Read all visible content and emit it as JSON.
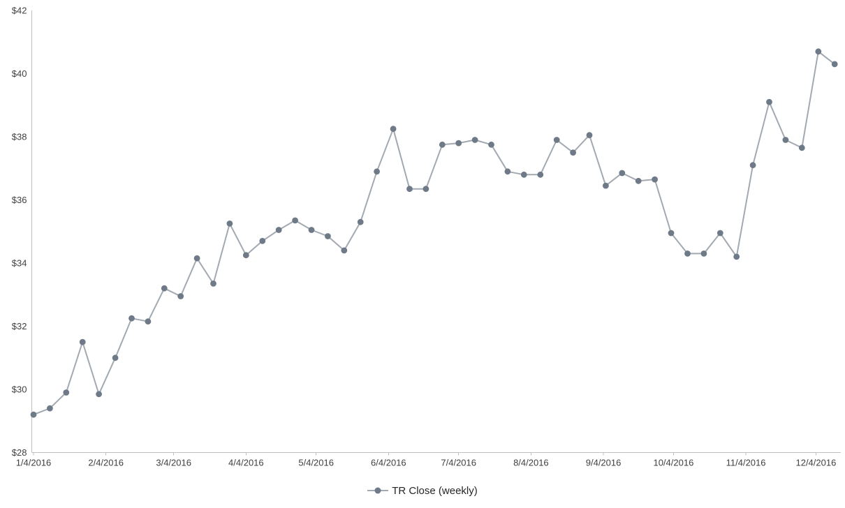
{
  "chart_data": {
    "type": "line",
    "title": "",
    "legend": "TR Close (weekly)",
    "legend_position": "bottom-center",
    "grid": false,
    "background": "#ffffff",
    "axis_line_color": "#bfbfbf",
    "axis_text_color": "#3f3f3f",
    "y_axis": {
      "min": 28,
      "max": 42,
      "tick_values": [
        28,
        30,
        32,
        34,
        36,
        38,
        40,
        42
      ],
      "tick_labels": [
        "$28",
        "$30",
        "$32",
        "$34",
        "$36",
        "$38",
        "$40",
        "$42"
      ]
    },
    "x_axis": {
      "tick_labels": [
        "1/4/2016",
        "2/4/2016",
        "3/4/2016",
        "4/4/2016",
        "5/4/2016",
        "6/4/2016",
        "7/4/2016",
        "8/4/2016",
        "9/4/2016",
        "10/4/2016",
        "11/4/2016",
        "12/4/2016"
      ],
      "tick_day_offsets": [
        0,
        31,
        60,
        91,
        121,
        152,
        182,
        213,
        244,
        274,
        305,
        335
      ]
    },
    "series": [
      {
        "name": "TR Close (weekly)",
        "line_color": "#a2a9b0",
        "marker_color": "#6e7a87",
        "x": [
          "1/4/2016",
          "1/11/2016",
          "1/18/2016",
          "1/25/2016",
          "2/1/2016",
          "2/8/2016",
          "2/15/2016",
          "2/22/2016",
          "2/29/2016",
          "3/7/2016",
          "3/14/2016",
          "3/21/2016",
          "3/28/2016",
          "4/4/2016",
          "4/11/2016",
          "4/18/2016",
          "4/25/2016",
          "5/2/2016",
          "5/9/2016",
          "5/16/2016",
          "5/23/2016",
          "5/30/2016",
          "6/6/2016",
          "6/13/2016",
          "6/20/2016",
          "6/27/2016",
          "7/4/2016",
          "7/11/2016",
          "7/18/2016",
          "7/25/2016",
          "8/1/2016",
          "8/8/2016",
          "8/15/2016",
          "8/22/2016",
          "8/29/2016",
          "9/5/2016",
          "9/12/2016",
          "9/19/2016",
          "9/26/2016",
          "10/3/2016",
          "10/10/2016",
          "10/17/2016",
          "10/24/2016",
          "10/31/2016",
          "11/7/2016",
          "11/14/2016",
          "11/21/2016",
          "11/28/2016",
          "12/5/2016",
          "12/12/2016"
        ],
        "values": [
          29.2,
          29.4,
          29.9,
          31.5,
          29.85,
          31.0,
          32.25,
          32.15,
          33.2,
          32.95,
          34.15,
          33.35,
          35.25,
          34.25,
          34.7,
          35.05,
          35.35,
          35.05,
          34.85,
          34.4,
          35.3,
          36.9,
          38.25,
          36.35,
          36.35,
          37.75,
          37.8,
          37.9,
          37.75,
          36.9,
          36.8,
          36.8,
          37.9,
          37.5,
          38.05,
          36.45,
          36.85,
          36.6,
          36.65,
          34.95,
          34.3,
          34.3,
          34.95,
          34.2,
          37.1,
          39.1,
          37.9,
          37.65,
          40.7,
          40.3
        ]
      }
    ]
  }
}
